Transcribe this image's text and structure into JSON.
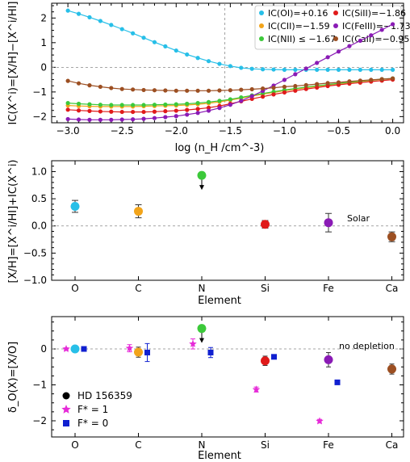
{
  "chart_data": [
    {
      "type": "line",
      "xlabel": "log (n_H /cm^-3)",
      "ylabel": "IC(X^i)=[X/H]−[X^i/HI]",
      "xlim": [
        -3.15,
        0.1
      ],
      "ylim": [
        -2.25,
        2.6
      ],
      "xticks": [
        -3.0,
        -2.5,
        -2.0,
        -1.5,
        -1.0,
        -0.5,
        0.0
      ],
      "yticks": [
        -2,
        -1,
        0,
        1,
        2
      ],
      "xtick_labels": [
        "−3.0",
        "−2.5",
        "−2.0",
        "−1.5",
        "−1.0",
        "−0.5",
        "0.0"
      ],
      "ytick_labels": [
        "−2",
        "−1",
        "0",
        "1",
        "2"
      ],
      "reference_lines": {
        "y": 0,
        "x": -1.55
      },
      "legend_position": "top-right",
      "x": [
        -3.0,
        -2.9,
        -2.8,
        -2.7,
        -2.6,
        -2.5,
        -2.4,
        -2.3,
        -2.2,
        -2.1,
        -2.0,
        -1.9,
        -1.8,
        -1.7,
        -1.6,
        -1.5,
        -1.4,
        -1.3,
        -1.2,
        -1.1,
        -1.0,
        -0.9,
        -0.8,
        -0.7,
        -0.6,
        -0.5,
        -0.4,
        -0.3,
        -0.2,
        -0.1,
        0.0
      ],
      "series": [
        {
          "name": "IC(OI)=+0.16",
          "color": "#27bfe8",
          "values": [
            2.3,
            2.17,
            2.03,
            1.88,
            1.72,
            1.55,
            1.38,
            1.2,
            1.02,
            0.85,
            0.68,
            0.52,
            0.38,
            0.25,
            0.14,
            0.05,
            -0.02,
            -0.06,
            -0.08,
            -0.09,
            -0.1,
            -0.1,
            -0.1,
            -0.1,
            -0.1,
            -0.1,
            -0.1,
            -0.1,
            -0.1,
            -0.1,
            -0.1
          ]
        },
        {
          "name": "IC(CII)=−1.59",
          "color": "#f2a41a",
          "values": [
            -1.55,
            -1.57,
            -1.58,
            -1.59,
            -1.59,
            -1.59,
            -1.59,
            -1.58,
            -1.57,
            -1.56,
            -1.55,
            -1.53,
            -1.5,
            -1.46,
            -1.4,
            -1.33,
            -1.25,
            -1.17,
            -1.09,
            -1.02,
            -0.95,
            -0.89,
            -0.83,
            -0.77,
            -0.72,
            -0.67,
            -0.62,
            -0.58,
            -0.53,
            -0.49,
            -0.46
          ]
        },
        {
          "name": "IC(NII) ≤ −1.67",
          "color": "#3cc93a",
          "values": [
            -1.45,
            -1.48,
            -1.5,
            -1.52,
            -1.53,
            -1.53,
            -1.53,
            -1.53,
            -1.52,
            -1.51,
            -1.5,
            -1.48,
            -1.45,
            -1.41,
            -1.36,
            -1.3,
            -1.22,
            -1.14,
            -1.06,
            -0.99,
            -0.92,
            -0.86,
            -0.8,
            -0.75,
            -0.7,
            -0.65,
            -0.6,
            -0.56,
            -0.52,
            -0.48,
            -0.45
          ]
        },
        {
          "name": "IC(SiII)=−1.86",
          "color": "#e01a1a",
          "values": [
            -1.72,
            -1.75,
            -1.77,
            -1.79,
            -1.8,
            -1.81,
            -1.81,
            -1.81,
            -1.8,
            -1.78,
            -1.76,
            -1.73,
            -1.69,
            -1.64,
            -1.57,
            -1.48,
            -1.38,
            -1.28,
            -1.19,
            -1.1,
            -1.02,
            -0.95,
            -0.88,
            -0.82,
            -0.76,
            -0.71,
            -0.66,
            -0.62,
            -0.58,
            -0.54,
            -0.5
          ]
        },
        {
          "name": "IC(FeIII)=−1.73",
          "color": "#8a1bb5",
          "values": [
            -2.1,
            -2.12,
            -2.13,
            -2.13,
            -2.13,
            -2.12,
            -2.11,
            -2.09,
            -2.06,
            -2.02,
            -1.98,
            -1.92,
            -1.85,
            -1.76,
            -1.65,
            -1.52,
            -1.36,
            -1.17,
            -0.96,
            -0.74,
            -0.51,
            -0.28,
            -0.05,
            0.18,
            0.41,
            0.64,
            0.86,
            1.08,
            1.3,
            1.52,
            1.75
          ]
        },
        {
          "name": "IC(CaII)=−0.95",
          "color": "#9c4f22",
          "values": [
            -0.55,
            -0.65,
            -0.73,
            -0.79,
            -0.84,
            -0.88,
            -0.9,
            -0.92,
            -0.93,
            -0.94,
            -0.95,
            -0.95,
            -0.95,
            -0.95,
            -0.94,
            -0.93,
            -0.91,
            -0.89,
            -0.86,
            -0.83,
            -0.79,
            -0.76,
            -0.72,
            -0.68,
            -0.64,
            -0.61,
            -0.57,
            -0.54,
            -0.51,
            -0.48,
            -0.45
          ]
        }
      ]
    },
    {
      "type": "scatter",
      "xlabel": "Element",
      "ylabel": "[X/H]=[X^i/HI]+IC(X^i)",
      "categories": [
        "O",
        "C",
        "N",
        "Si",
        "Fe",
        "Ca"
      ],
      "ylim": [
        -1.0,
        1.2
      ],
      "yticks": [
        -1.0,
        -0.5,
        0.0,
        0.5,
        1.0
      ],
      "ytick_labels": [
        "−1.0",
        "−0.5",
        "0.0",
        "0.5",
        "1.0"
      ],
      "reference_line": {
        "y": 0,
        "label": "Solar"
      },
      "points": [
        {
          "category": "O",
          "value": 0.36,
          "err": 0.11,
          "color": "#27bfe8",
          "upper_limit": false
        },
        {
          "category": "C",
          "value": 0.27,
          "err": 0.12,
          "color": "#f2a41a",
          "upper_limit": false
        },
        {
          "category": "N",
          "value": 0.93,
          "err": 0.0,
          "color": "#3cc93a",
          "upper_limit": true
        },
        {
          "category": "Si",
          "value": 0.03,
          "err": 0.07,
          "color": "#e01a1a",
          "upper_limit": false
        },
        {
          "category": "Fe",
          "value": 0.06,
          "err": 0.17,
          "color": "#8a1bb5",
          "upper_limit": false
        },
        {
          "category": "Ca",
          "value": -0.2,
          "err": 0.09,
          "color": "#9c4f22",
          "upper_limit": false
        }
      ]
    },
    {
      "type": "scatter",
      "xlabel": "Element",
      "ylabel": "δ_O(X)=[X/O]",
      "categories": [
        "O",
        "C",
        "N",
        "Si",
        "Fe",
        "Ca"
      ],
      "ylim": [
        -2.45,
        0.9
      ],
      "yticks": [
        -2,
        -1,
        0
      ],
      "ytick_labels": [
        "−2",
        "−1",
        "0"
      ],
      "reference_line": {
        "y": 0,
        "label": "no depletion"
      },
      "legend_position": "bottom-left",
      "series": [
        {
          "name": "HD 156359",
          "marker": "circle",
          "points": [
            {
              "category": "O",
              "value": 0.0,
              "err": 0.0,
              "color": "#27bfe8",
              "upper_limit": false
            },
            {
              "category": "C",
              "value": -0.09,
              "err": 0.14,
              "color": "#f2a41a",
              "upper_limit": false
            },
            {
              "category": "N",
              "value": 0.57,
              "err": 0.0,
              "color": "#3cc93a",
              "upper_limit": true
            },
            {
              "category": "Si",
              "value": -0.33,
              "err": 0.13,
              "color": "#e01a1a",
              "upper_limit": false
            },
            {
              "category": "Fe",
              "value": -0.3,
              "err": 0.2,
              "color": "#8a1bb5",
              "upper_limit": false
            },
            {
              "category": "Ca",
              "value": -0.56,
              "err": 0.14,
              "color": "#9c4f22",
              "upper_limit": false
            }
          ]
        },
        {
          "name": "F* = 1",
          "marker": "star",
          "color": "#e62bd8",
          "points": [
            {
              "category": "O",
              "value": 0.0,
              "err": 0.03
            },
            {
              "category": "C",
              "value": 0.02,
              "err": 0.1
            },
            {
              "category": "N",
              "value": 0.14,
              "err": 0.14
            },
            {
              "category": "Si",
              "value": -1.13,
              "err": 0.07
            },
            {
              "category": "Fe",
              "value": -2.01,
              "err": 0.05
            }
          ]
        },
        {
          "name": "F* = 0",
          "marker": "square",
          "color": "#1020d0",
          "points": [
            {
              "category": "O",
              "value": 0.0,
              "err": 0.03
            },
            {
              "category": "C",
              "value": -0.1,
              "err": 0.25
            },
            {
              "category": "N",
              "value": -0.1,
              "err": 0.14
            },
            {
              "category": "Si",
              "value": -0.22,
              "err": 0.06
            },
            {
              "category": "Fe",
              "value": -0.93,
              "err": 0.05
            }
          ]
        }
      ]
    }
  ]
}
